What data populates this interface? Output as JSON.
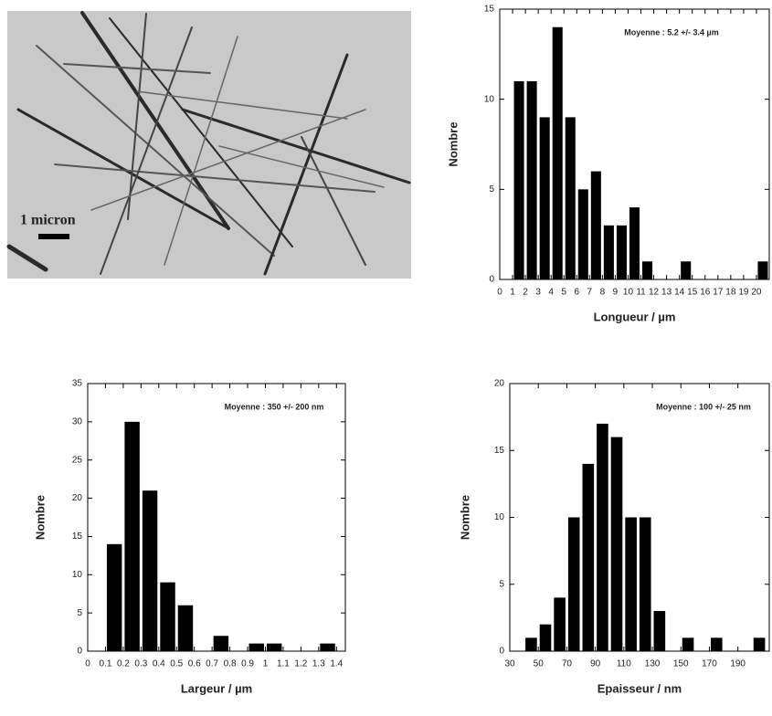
{
  "micrograph": {
    "scale_label": "1 micron"
  },
  "chart_data": [
    {
      "type": "histogram",
      "annotation": "Moyenne : 5.2 +/- 3.4 µm",
      "x_label": "Longueur / µm",
      "y_label": "Nombre",
      "bins": [
        1,
        2,
        3,
        4,
        5,
        6,
        7,
        8,
        9,
        10,
        11,
        12,
        13,
        14,
        15,
        16,
        17,
        18,
        19,
        20,
        21
      ],
      "values": [
        11,
        11,
        9,
        14,
        9,
        5,
        6,
        3,
        3,
        4,
        1,
        0,
        0,
        1,
        0,
        0,
        0,
        0,
        0,
        1
      ],
      "color": "#000000",
      "xlim": [
        0,
        21
      ],
      "xticks": [
        0,
        1,
        2,
        3,
        4,
        5,
        6,
        7,
        8,
        9,
        10,
        11,
        12,
        13,
        14,
        15,
        16,
        17,
        18,
        19,
        20
      ],
      "ylim": [
        0,
        15
      ],
      "yticks": [
        0,
        5,
        10,
        15
      ]
    },
    {
      "type": "histogram",
      "annotation": "Moyenne : 350 +/- 200 nm",
      "x_label": "Largeur / µm",
      "y_label": "Nombre",
      "bins": [
        0.1,
        0.2,
        0.3,
        0.4,
        0.5,
        0.6,
        0.7,
        0.8,
        0.9,
        1.0,
        1.1,
        1.2,
        1.3,
        1.4
      ],
      "values": [
        14,
        30,
        21,
        9,
        6,
        0,
        2,
        0,
        1,
        1,
        0,
        0,
        1
      ],
      "color": "#000000",
      "xlim": [
        0,
        1.45
      ],
      "xticks": [
        0,
        0.1,
        0.2,
        0.3,
        0.4,
        0.5,
        0.6,
        0.7,
        0.8,
        0.9,
        1,
        1.1,
        1.2,
        1.3,
        1.4
      ],
      "ylim": [
        0,
        35
      ],
      "yticks": [
        0,
        5,
        10,
        15,
        20,
        25,
        30,
        35
      ]
    },
    {
      "type": "histogram",
      "annotation": "Moyenne : 100 +/- 25 nm",
      "x_label": "Epaisseur / nm",
      "y_label": "Nombre",
      "bins": [
        40,
        50,
        60,
        70,
        80,
        90,
        100,
        110,
        120,
        130,
        140,
        150,
        160,
        170,
        180,
        190,
        200,
        210
      ],
      "values": [
        1,
        2,
        4,
        10,
        14,
        17,
        16,
        10,
        10,
        3,
        0,
        1,
        0,
        1,
        0,
        0,
        1
      ],
      "color": "#000000",
      "xlim": [
        30,
        212
      ],
      "xticks": [
        30,
        50,
        70,
        90,
        110,
        130,
        150,
        170,
        190
      ],
      "ylim": [
        0,
        20
      ],
      "yticks": [
        0,
        5,
        10,
        15,
        20
      ]
    }
  ]
}
